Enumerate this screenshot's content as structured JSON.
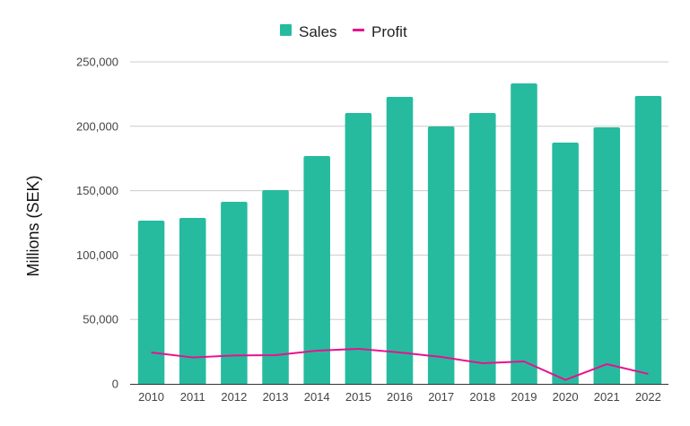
{
  "chart_data": {
    "type": "bar",
    "title": "",
    "xlabel": "",
    "ylabel": "Millions (SEK)",
    "ylim": [
      0,
      250000
    ],
    "yticks": [
      0,
      50000,
      100000,
      150000,
      200000,
      250000
    ],
    "ytick_labels": [
      "0",
      "50,000",
      "100,000",
      "150,000",
      "200,000",
      "250,000"
    ],
    "grid": true,
    "legend_position": "top-center",
    "categories": [
      "2010",
      "2011",
      "2012",
      "2013",
      "2014",
      "2015",
      "2016",
      "2017",
      "2018",
      "2019",
      "2020",
      "2021",
      "2022"
    ],
    "series": [
      {
        "name": "Sales",
        "type": "bar",
        "color": "#26BB9E",
        "values": [
          126700,
          128800,
          141400,
          150400,
          176900,
          210300,
          222800,
          199900,
          210300,
          233300,
          187300,
          199200,
          223500
        ]
      },
      {
        "name": "Profit",
        "type": "line",
        "color": "#E8118F",
        "values": [
          24400,
          20500,
          22000,
          22300,
          25800,
          27200,
          24400,
          20900,
          16000,
          17400,
          3100,
          15300,
          7700
        ]
      }
    ]
  }
}
